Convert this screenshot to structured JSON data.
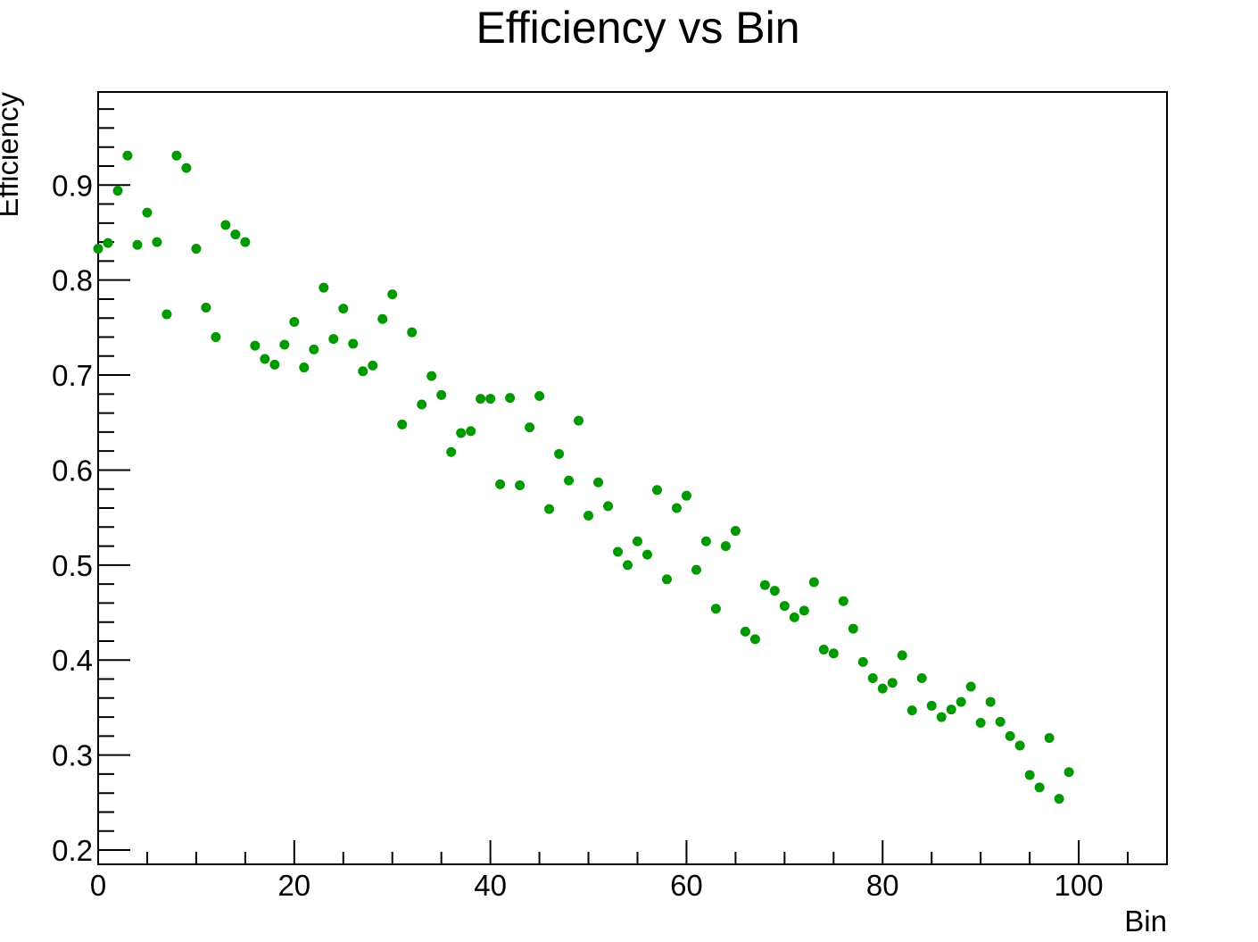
{
  "chart_data": {
    "type": "scatter",
    "title": "Efficiency vs Bin",
    "xlabel": "Bin",
    "ylabel": "Efficiency",
    "xlim": [
      0,
      109
    ],
    "ylim": [
      0.185,
      0.998
    ],
    "x_ticks": [
      0,
      20,
      40,
      60,
      80,
      100
    ],
    "x_tick_labels": [
      "0",
      "20",
      "40",
      "60",
      "80",
      "100"
    ],
    "y_ticks": [
      0.2,
      0.3,
      0.4,
      0.5,
      0.6,
      0.7,
      0.8,
      0.9
    ],
    "y_tick_labels": [
      "0.2",
      "0.3",
      "0.4",
      "0.5",
      "0.6",
      "0.7",
      "0.8",
      "0.9"
    ],
    "grid": false,
    "marker_color": "#009900",
    "series": [
      {
        "x": [
          0,
          1,
          2,
          3,
          4,
          5,
          6,
          7,
          8,
          9,
          10,
          11,
          12,
          13,
          14,
          15,
          16,
          17,
          18,
          19,
          20,
          21,
          22,
          23,
          24,
          25,
          26,
          27,
          28,
          29,
          30,
          31,
          32,
          33,
          34,
          35,
          36,
          37,
          38,
          39,
          40,
          41,
          42,
          43,
          44,
          45,
          46,
          47,
          48,
          49,
          50,
          51,
          52,
          53,
          54,
          55,
          56,
          57,
          58,
          59,
          60,
          61,
          62,
          63,
          64,
          65,
          66,
          67,
          68,
          69,
          70,
          71,
          72,
          73,
          74,
          75,
          76,
          77,
          78,
          79,
          80,
          81,
          82,
          83,
          84,
          85,
          86,
          87,
          88,
          89,
          90,
          91,
          92,
          93,
          94,
          95,
          96,
          97,
          98,
          99
        ],
        "y": [
          0.833,
          0.839,
          0.894,
          0.931,
          0.837,
          0.871,
          0.84,
          0.764,
          0.931,
          0.918,
          0.833,
          0.771,
          0.74,
          0.858,
          0.848,
          0.84,
          0.731,
          0.717,
          0.711,
          0.732,
          0.756,
          0.708,
          0.727,
          0.792,
          0.738,
          0.77,
          0.733,
          0.704,
          0.71,
          0.759,
          0.785,
          0.648,
          0.745,
          0.669,
          0.699,
          0.679,
          0.619,
          0.639,
          0.641,
          0.675,
          0.675,
          0.585,
          0.676,
          0.584,
          0.645,
          0.678,
          0.559,
          0.617,
          0.589,
          0.652,
          0.552,
          0.587,
          0.562,
          0.514,
          0.5,
          0.525,
          0.511,
          0.579,
          0.485,
          0.56,
          0.573,
          0.495,
          0.525,
          0.454,
          0.52,
          0.536,
          0.43,
          0.422,
          0.479,
          0.473,
          0.457,
          0.445,
          0.452,
          0.482,
          0.411,
          0.407,
          0.462,
          0.433,
          0.398,
          0.381,
          0.37,
          0.376,
          0.405,
          0.347,
          0.381,
          0.352,
          0.34,
          0.348,
          0.356,
          0.372,
          0.334,
          0.356,
          0.335,
          0.32,
          0.31,
          0.279,
          0.266,
          0.318,
          0.254,
          0.282
        ]
      }
    ]
  }
}
